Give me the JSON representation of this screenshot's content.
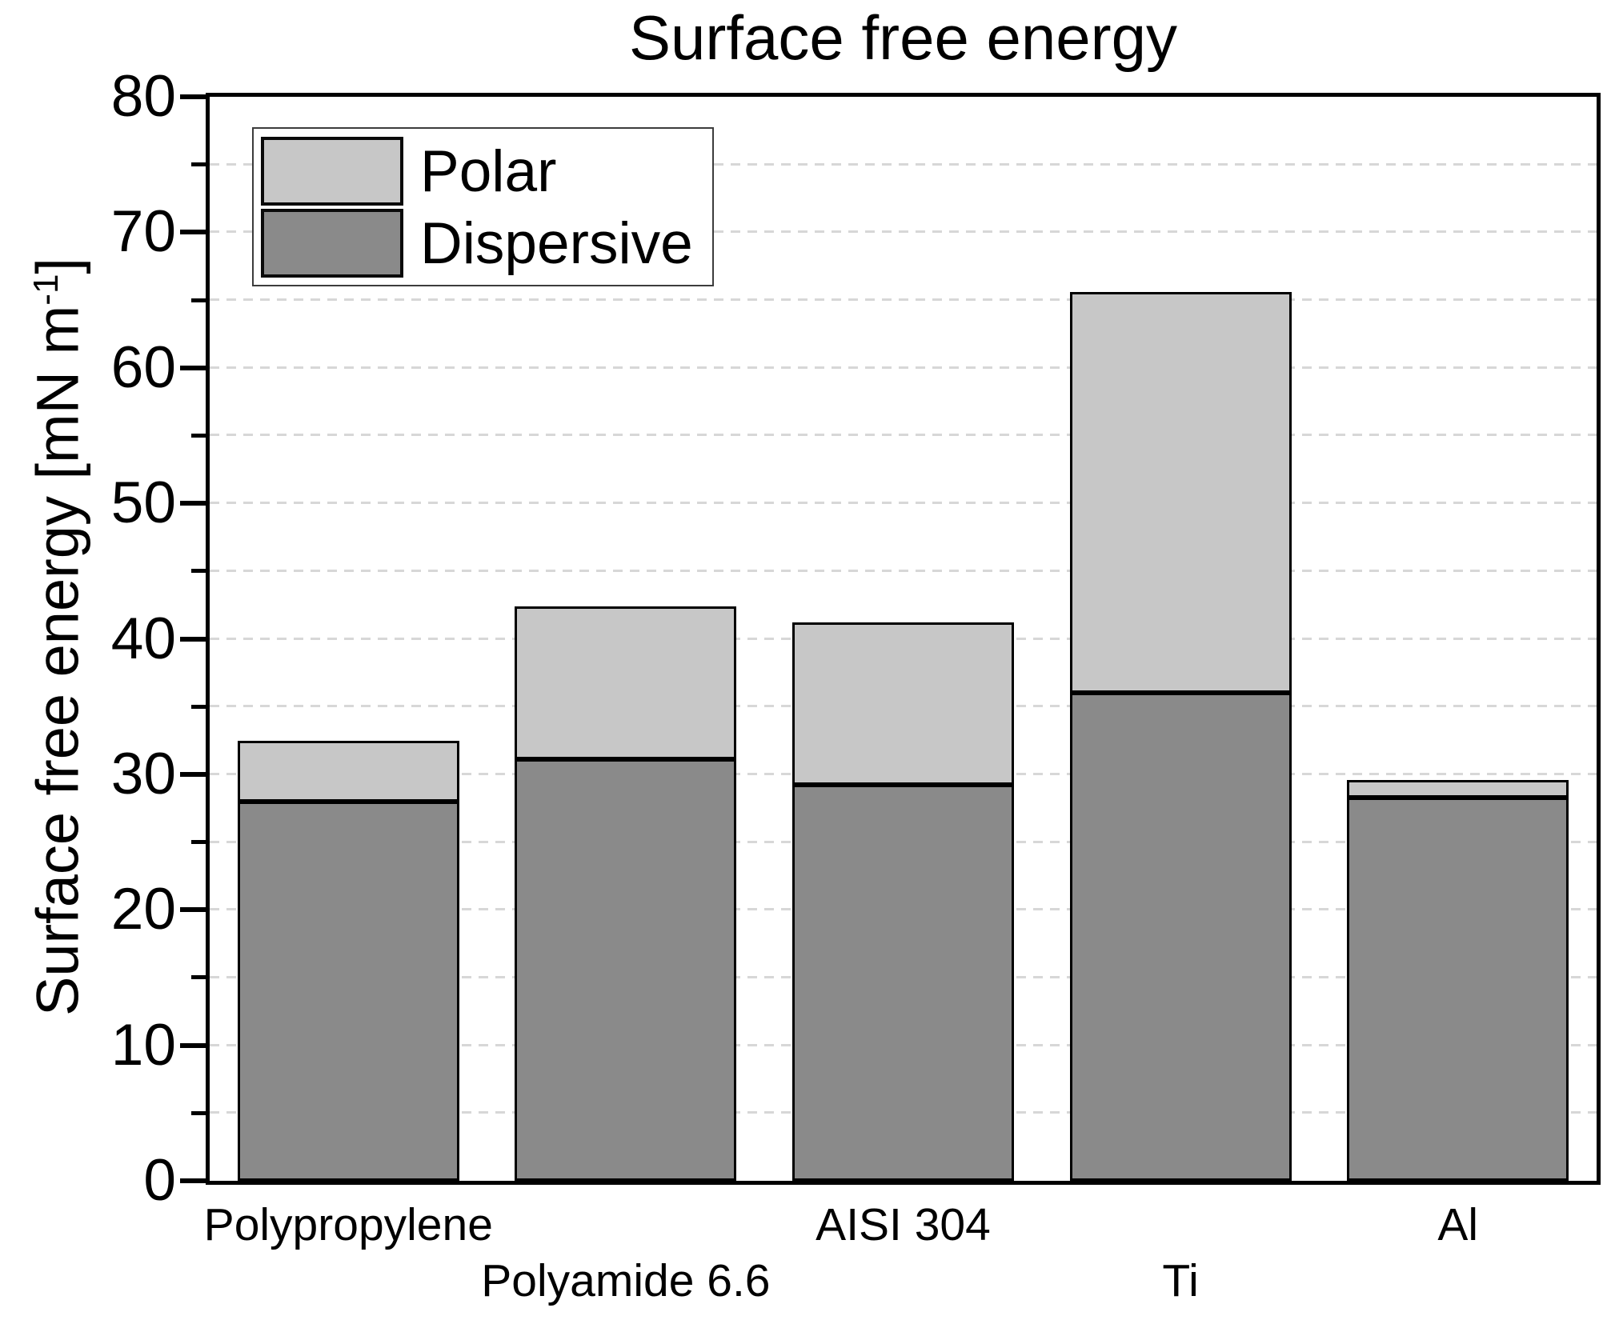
{
  "title": "Surface free energy",
  "y_axis": {
    "label_full": "Surface free energy [mN m⁻¹]",
    "label_main": "Surface free energy [mN m",
    "label_exponent": "-1",
    "label_close": "]",
    "tick_labels": [
      "0",
      "10",
      "20",
      "30",
      "40",
      "50",
      "60",
      "70",
      "80"
    ]
  },
  "legend": {
    "entries": [
      {
        "label": "Polar",
        "color": "#c7c7c7"
      },
      {
        "label": "Dispersive",
        "color": "#8a8a8a"
      }
    ]
  },
  "colors": {
    "polar": "#c7c7c7",
    "dispersive": "#8a8a8a",
    "axis": "#000000",
    "gridline": "#d7d7d7",
    "background": "#ffffff"
  },
  "chart_data": {
    "type": "bar",
    "stacked": true,
    "title": "Surface free energy",
    "xlabel": "",
    "ylabel": "Surface free energy [mN m⁻¹]",
    "ylim": [
      0,
      80
    ],
    "y_major_tick_step": 10,
    "y_minor_tick_step": 5,
    "grid": "horizontal dashed light-gray every 5 units",
    "legend_position": "top-left inside plot",
    "categories": [
      "Polypropylene",
      "Polyamide 6.6",
      "AISI 304",
      "Ti",
      "Al"
    ],
    "series": [
      {
        "name": "Dispersive",
        "color": "#8a8a8a",
        "values": [
          28.0,
          31.1,
          29.2,
          36.0,
          28.3
        ]
      },
      {
        "name": "Polar",
        "color": "#c7c7c7",
        "values": [
          4.5,
          11.3,
          12.0,
          29.6,
          1.3
        ]
      }
    ],
    "stack_totals": [
      32.5,
      42.4,
      41.2,
      65.6,
      29.6
    ]
  }
}
